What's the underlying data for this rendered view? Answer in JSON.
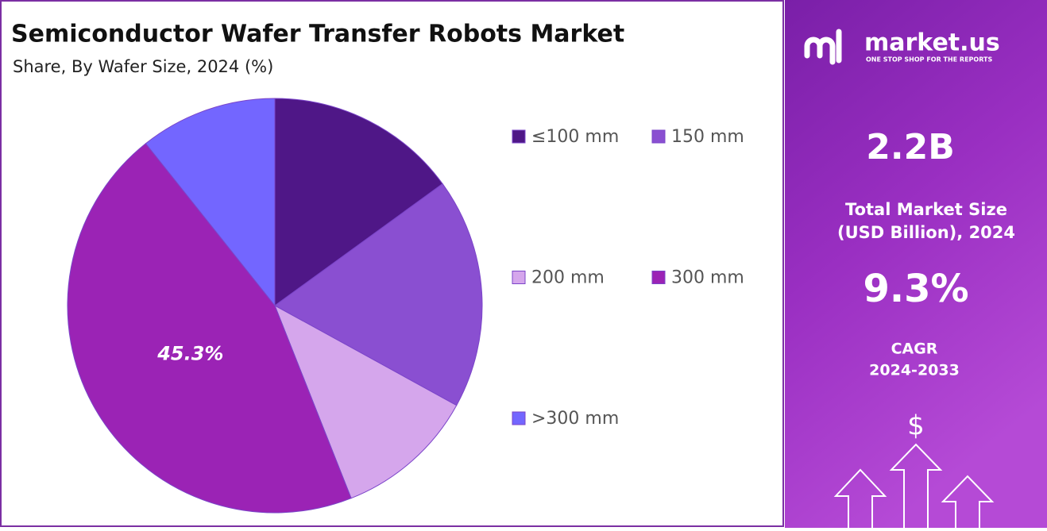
{
  "chart_data": {
    "type": "pie",
    "title": "Semiconductor Wafer Transfer Robots Market",
    "subtitle": "Share, By Wafer Size, 2024 (%)",
    "categories": [
      "≤100 mm",
      "150 mm",
      "200 mm",
      "300 mm",
      ">300 mm"
    ],
    "values": [
      15,
      18,
      11,
      45.3,
      10.7
    ],
    "value_labels": [
      null,
      null,
      null,
      "45.3%",
      null
    ],
    "colors": [
      "#4f1787",
      "#8a4fd1",
      "#d5a6ec",
      "#9b23b5",
      "#7366ff"
    ]
  },
  "panel": {
    "brand": "market.us",
    "tagline": "ONE STOP SHOP FOR THE REPORTS",
    "market_size": "2.2B",
    "market_size_label": [
      "Total Market Size",
      "(USD Billion), 2024"
    ],
    "cagr": "9.3%",
    "cagr_label": [
      "CAGR",
      "2024-2033"
    ],
    "icon": "$"
  }
}
